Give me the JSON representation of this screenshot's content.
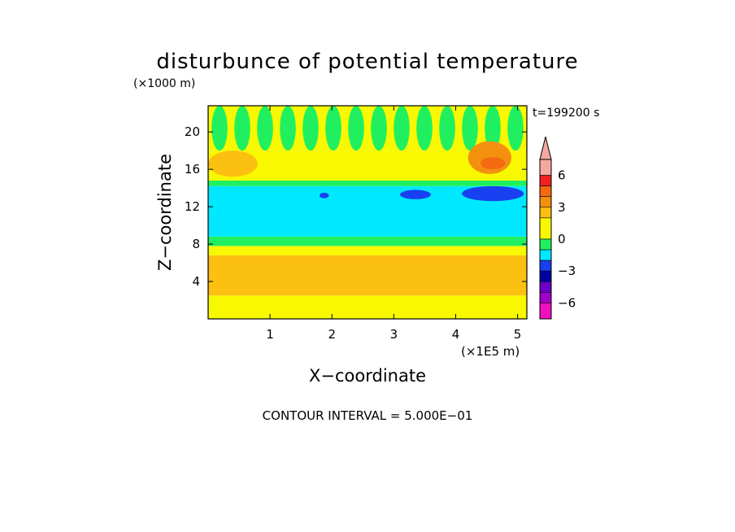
{
  "chart_data": {
    "type": "heatmap",
    "title": "disturbunce of potential temperature",
    "time_label": "t=199200 s",
    "xlabel": "X−coordinate",
    "ylabel": "Z−coordinate",
    "x_unit": "(×1E5 m)",
    "y_unit": "(×1000 m)",
    "xlim": [
      0,
      5.15
    ],
    "ylim": [
      0,
      22.8
    ],
    "x_ticks": [
      1,
      2,
      3,
      4,
      5
    ],
    "y_ticks": [
      4,
      8,
      12,
      16,
      20
    ],
    "footer": "CONTOUR INTERVAL = 5.000E−01",
    "colorbar": {
      "tick_values": [
        6,
        3,
        0,
        -3,
        -6
      ],
      "tick_labels": [
        "6",
        "3",
        "0",
        "−3",
        "−6"
      ],
      "levels": [
        {
          "min": 7.5,
          "max": null,
          "color": "#f4a8a0"
        },
        {
          "min": 6.0,
          "max": 7.5,
          "color": "#f4a8a0"
        },
        {
          "min": 5.0,
          "max": 6.0,
          "color": "#f42020"
        },
        {
          "min": 4.0,
          "max": 5.0,
          "color": "#f46a10"
        },
        {
          "min": 3.0,
          "max": 4.0,
          "color": "#f49010"
        },
        {
          "min": 2.0,
          "max": 3.0,
          "color": "#fcc010"
        },
        {
          "min": 0.0,
          "max": 2.0,
          "color": "#f8f800"
        },
        {
          "min": -1.0,
          "max": 0.0,
          "color": "#20f060"
        },
        {
          "min": -2.0,
          "max": -1.0,
          "color": "#00e8ff"
        },
        {
          "min": -3.0,
          "max": -2.0,
          "color": "#1840f0"
        },
        {
          "min": -4.0,
          "max": -3.0,
          "color": "#0000a0"
        },
        {
          "min": -5.0,
          "max": -4.0,
          "color": "#6a00c8"
        },
        {
          "min": -6.0,
          "max": -5.0,
          "color": "#a000c8"
        },
        {
          "min": -7.5,
          "max": -6.0,
          "color": "#f010c0"
        },
        {
          "min": null,
          "max": -7.5,
          "color": "#f010c0"
        }
      ]
    },
    "field_bands": [
      {
        "z": [
          0.0,
          2.5
        ],
        "value": 1.2,
        "color": "#f8f800"
      },
      {
        "z": [
          2.5,
          6.8
        ],
        "value": 2.4,
        "color": "#fcc010"
      },
      {
        "z": [
          6.8,
          7.8
        ],
        "value": 0.8,
        "color": "#f8f800"
      },
      {
        "z": [
          7.8,
          8.8
        ],
        "value": -0.5,
        "color": "#20f060"
      },
      {
        "z": [
          8.8,
          14.2
        ],
        "value": -1.5,
        "color": "#00e8ff"
      },
      {
        "z": [
          14.2,
          14.8
        ],
        "value": -0.5,
        "color": "#20f060"
      },
      {
        "z": [
          14.8,
          18.0
        ],
        "value": 0.8,
        "color": "#f8f800"
      },
      {
        "z": [
          18.0,
          22.8
        ],
        "value": 0.5,
        "color": "#f8f800"
      }
    ],
    "features": [
      {
        "x": [
          4.1,
          5.1
        ],
        "z": [
          12.6,
          14.2
        ],
        "value": -2.5,
        "color": "#1840f0"
      },
      {
        "x": [
          3.1,
          3.6
        ],
        "z": [
          12.8,
          13.8
        ],
        "value": -2.5,
        "color": "#1840f0"
      },
      {
        "x": [
          1.8,
          1.95
        ],
        "z": [
          12.9,
          13.5
        ],
        "value": -2.5,
        "color": "#1840f0"
      },
      {
        "x": [
          4.2,
          4.9
        ],
        "z": [
          15.5,
          19.0
        ],
        "value": 3.5,
        "color": "#f49010"
      },
      {
        "x": [
          4.4,
          4.8
        ],
        "z": [
          16.0,
          17.3
        ],
        "value": 4.5,
        "color": "#f46a10"
      },
      {
        "x": [
          0.0,
          0.8
        ],
        "z": [
          15.2,
          18.0
        ],
        "value": 2.5,
        "color": "#fcc010"
      },
      {
        "x": [
          0.0,
          5.15
        ],
        "z": [
          18.0,
          22.8
        ],
        "value": -0.5,
        "color": "#20f060"
      }
    ]
  }
}
